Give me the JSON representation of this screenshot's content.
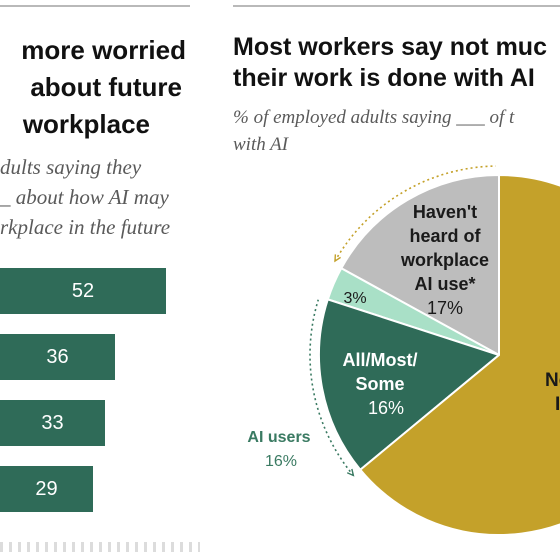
{
  "left_panel": {
    "title_lines": [
      "more worried",
      "about future",
      "workplace"
    ],
    "subtitle_lines": [
      "dults saying they",
      "_ about how AI may",
      "rkplace in the future"
    ]
  },
  "right_panel": {
    "title_lines": [
      "Most workers say not muc",
      "their work is done with AI"
    ],
    "subtitle_lines": [
      "% of employed adults saying ___ of t",
      "with AI"
    ]
  },
  "colors": {
    "green": "#2f6b58",
    "gold": "#c4a12a",
    "gray": "#bdbdbd",
    "mint": "#a9e0c7",
    "label_green": "#3a7a62"
  },
  "chart_data": [
    {
      "type": "bar",
      "orientation": "horizontal",
      "categories": [
        "",
        "",
        "",
        ""
      ],
      "values": [
        52,
        36,
        33,
        29
      ],
      "value_labels": [
        "52",
        "36",
        "33",
        "29"
      ],
      "xlim": [
        0,
        52
      ]
    },
    {
      "type": "pie",
      "slices": [
        {
          "label_lines": [
            "Haven't",
            "heard of",
            "workplace",
            "AI use*"
          ],
          "value": 17,
          "value_label": "17%",
          "color": "#bdbdbd"
        },
        {
          "label_lines": [],
          "value": 3,
          "value_label": "3%",
          "color": "#a9e0c7"
        },
        {
          "label_lines": [
            "All/Most/",
            "Some"
          ],
          "value": 16,
          "value_label": "16%",
          "color": "#2f6b58"
        },
        {
          "label_lines": [
            "Not",
            "I"
          ],
          "value": 64,
          "value_label": "",
          "color": "#c4a12a"
        }
      ],
      "group_label": {
        "label": "AI users",
        "value_label": "16%"
      }
    }
  ]
}
